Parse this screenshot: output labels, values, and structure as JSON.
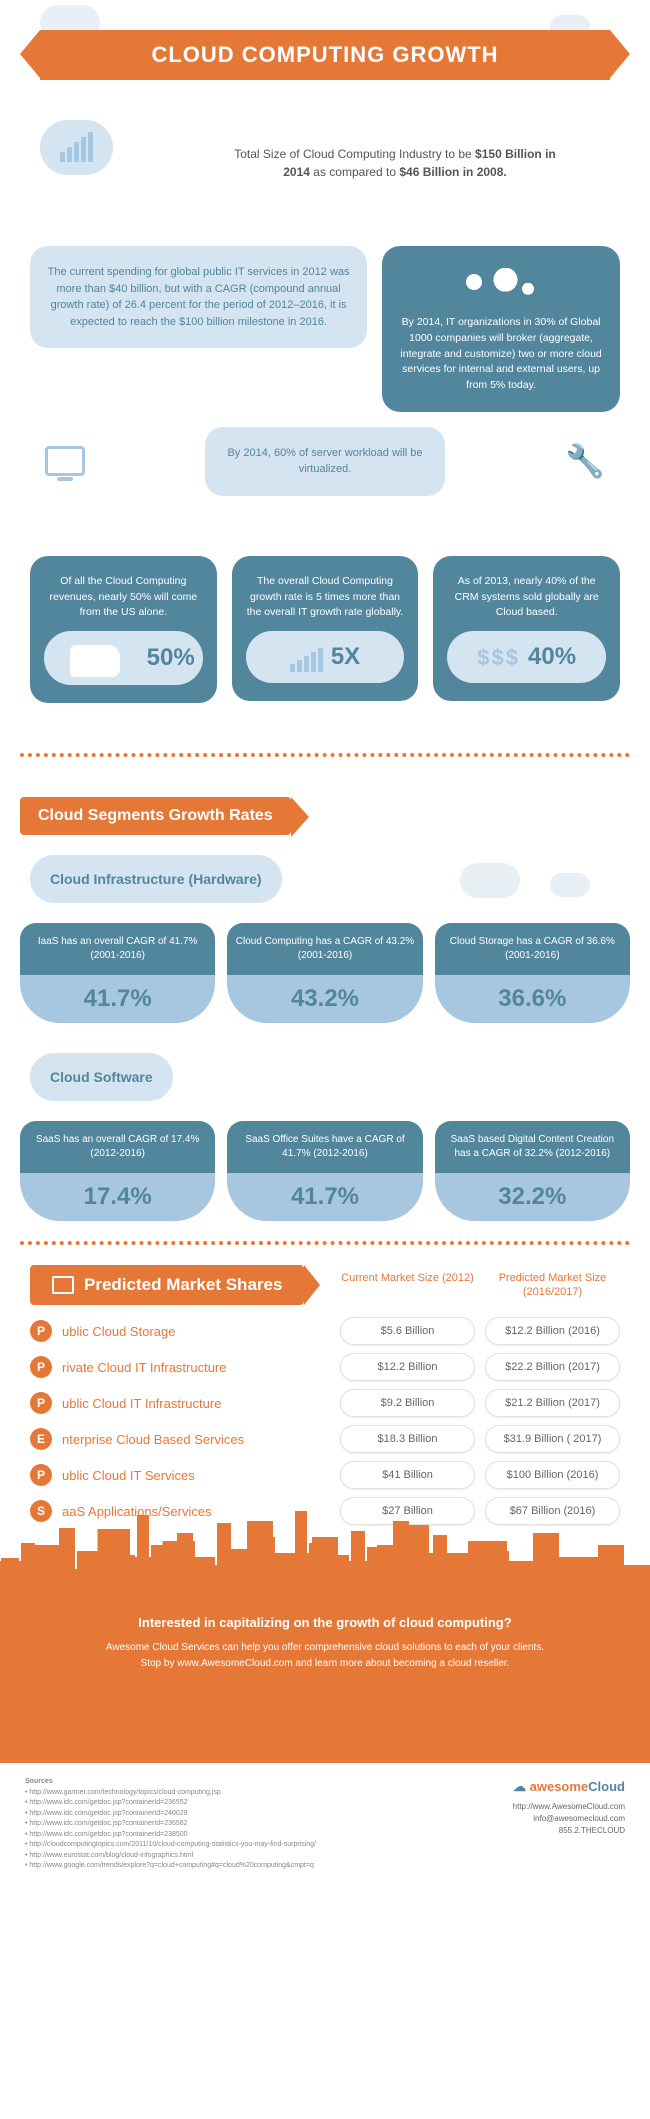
{
  "colors": {
    "accent": "#e67837",
    "cloud_light": "#d4e4f0",
    "cloud_mid": "#a7c7e0",
    "cloud_dark": "#52869d",
    "text": "#555555",
    "bg": "#ffffff"
  },
  "header": {
    "title": "CLOUD COMPUTING GROWTH"
  },
  "intro": {
    "prefix": "Total Size of Cloud Computing Industry to be ",
    "val1": "$150 Billion in 2014",
    "mid": " as compared to ",
    "val2": "$46 Billion in 2008."
  },
  "facts": {
    "spending": "The current spending for global public IT services in 2012 was more than $40 billion, but with a CAGR (compound annual growth rate) of 26.4 percent for the period of 2012–2016, it is expected to reach the $100 billion milestone in 2016.",
    "global1000": "By 2014, IT organizations in 30% of Global 1000 companies will broker (aggregate, integrate and customize) two or more cloud services for internal and external users, up from 5% today.",
    "virtualized": "By 2014, 60% of server workload will be virtualized.",
    "us_revenue": "Of all the Cloud Computing revenues, nearly 50% will come from the US alone.",
    "us_stat": "50%",
    "growth_5x": "The overall Cloud Computing growth rate is 5 times more than the overall IT growth rate globally.",
    "growth_stat": "5X",
    "crm": "As of 2013, nearly 40% of the CRM systems sold globally are Cloud based.",
    "crm_stat": "40%"
  },
  "segments": {
    "banner": "Cloud Segments Growth Rates",
    "infra_title": "Cloud Infrastructure (Hardware)",
    "infra": [
      {
        "text": "IaaS has an overall CAGR of 41.7% (2001-2016)",
        "pct": "41.7%"
      },
      {
        "text": "Cloud Computing has a CAGR of 43.2% (2001-2016)",
        "pct": "43.2%"
      },
      {
        "text": "Cloud Storage has a CAGR of 36.6% (2001-2016)",
        "pct": "36.6%"
      }
    ],
    "software_title": "Cloud Software",
    "software": [
      {
        "text": "SaaS has an overall CAGR of 17.4% (2012-2016)",
        "pct": "17.4%"
      },
      {
        "text": "SaaS Office Suites have a CAGR of 41.7% (2012-2016)",
        "pct": "41.7%"
      },
      {
        "text": "SaaS based Digital Content Creation has a CAGR of 32.2% (2012-2016)",
        "pct": "32.2%"
      }
    ]
  },
  "market": {
    "title": "Predicted Market Shares",
    "col1": "Current Market Size (2012)",
    "col2": "Predicted Market Size (2016/2017)",
    "rows": [
      {
        "letter": "P",
        "name": "ublic Cloud Storage",
        "cur": "$5.6 Billion",
        "pred": "$12.2 Billion (2016)"
      },
      {
        "letter": "P",
        "name": "rivate Cloud IT Infrastructure",
        "cur": "$12.2 Billion",
        "pred": "$22.2 Billion (2017)"
      },
      {
        "letter": "P",
        "name": "ublic Cloud IT Infrastructure",
        "cur": "$9.2 Billion",
        "pred": "$21.2 Billion (2017)"
      },
      {
        "letter": "E",
        "name": "nterprise Cloud Based Services",
        "cur": "$18.3 Billion",
        "pred": "$31.9 Billion ( 2017)"
      },
      {
        "letter": "P",
        "name": "ublic Cloud IT Services",
        "cur": "$41 Billion",
        "pred": "$100 Billion (2016)"
      },
      {
        "letter": "S",
        "name": "aaS Applications/Services",
        "cur": "$27 Billion",
        "pred": "$67 Billion (2016)"
      }
    ]
  },
  "footer": {
    "q": "Interested in capitalizing on the growth of cloud computing?",
    "line1": "Awesome Cloud Services can help you offer comprehensive cloud solutions to each of your clients.",
    "line2": "Stop by www.AwesomeCloud.com and learn more about becoming a cloud reseller."
  },
  "sources": {
    "label": "Sources",
    "items": [
      "http://www.gartner.com/technology/topics/cloud-computing.jsp",
      "http://www.idc.com/getdoc.jsp?containerId=236552",
      "http://www.idc.com/getdoc.jsp?containerId=240029",
      "http://www.idc.com/getdoc.jsp?containerId=236582",
      "http://www.idc.com/getdoc.jsp?containerId=238500",
      "http://cloudcomputingtopics.com/2011/10/cloud-computing-statistics-you-may-find-surprising/",
      "http://www.eurostat.com/blog/cloud-infographics.html",
      "http://www.google.com/trends/explore?q=cloud+computing#q=cloud%20computing&cmpt=q"
    ],
    "logo_a": "awesome",
    "logo_b": "Cloud",
    "url": "http://www.AwesomeCloud.com",
    "email": "info@awesomecloud.com",
    "phone": "855.2.THECLOUD"
  }
}
